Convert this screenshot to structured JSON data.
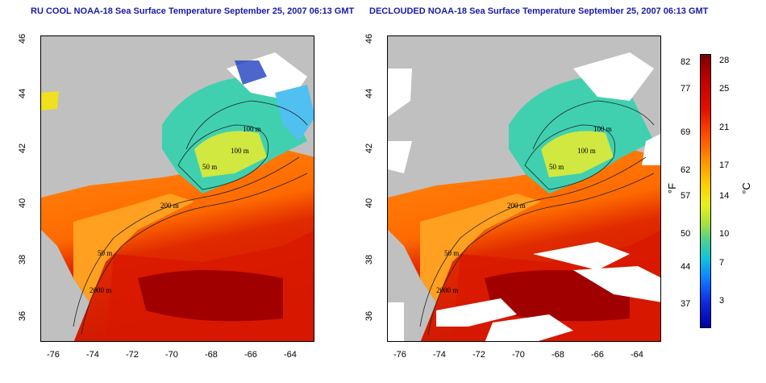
{
  "titles": {
    "left": "RU COOL NOAA-18 Sea Surface Temperature September 25, 2007 06:13 GMT",
    "right": "DECLOUDED NOAA-18 Sea Surface Temperature September 25, 2007 06:13 GMT"
  },
  "axes": {
    "x_ticks": [
      "-76",
      "-74",
      "-72",
      "-70",
      "-68",
      "-66",
      "-64"
    ],
    "y_ticks": [
      "46",
      "44",
      "42",
      "40",
      "38",
      "36"
    ]
  },
  "contours": {
    "left": [
      "100 m",
      "50 m",
      "100 m",
      "200 m",
      "50 m",
      "2000 m"
    ],
    "right": [
      "100 m",
      "50 m",
      "100 m",
      "200 m",
      "50 m",
      "2000 m"
    ]
  },
  "colorbar": {
    "fahrenheit": [
      "82",
      "77",
      "69",
      "62",
      "57",
      "50",
      "44",
      "37"
    ],
    "celsius": [
      "28",
      "25",
      "21",
      "17",
      "14",
      "10",
      "7",
      "3"
    ],
    "unit_f": "°F",
    "unit_c": "°C"
  },
  "colors": {
    "land": "#c0c0c0",
    "cloud_masked": "#ffffff",
    "warm": "#cc1000",
    "cool": "#40d0b0",
    "title": "#1a1aa8"
  }
}
